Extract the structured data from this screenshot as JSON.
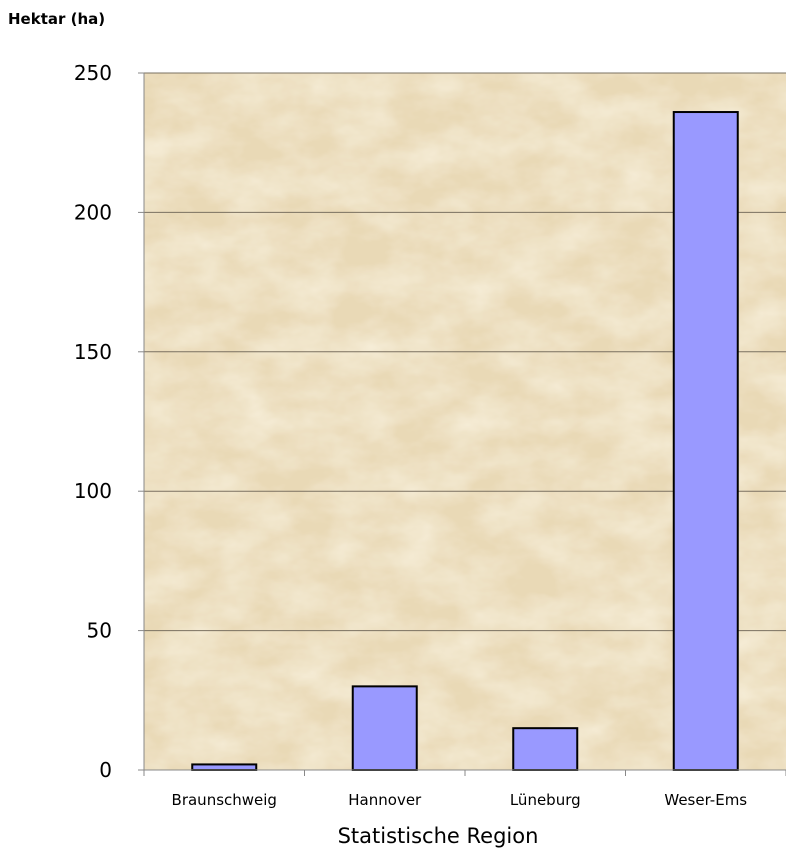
{
  "chart_data": {
    "type": "bar",
    "ylabel": "Hektar (ha)",
    "xlabel": "Statistische Region",
    "categories": [
      "Braunschweig",
      "Hannover",
      "Lüneburg",
      "Weser-Ems"
    ],
    "values": [
      2,
      30,
      15,
      236
    ],
    "ylim": [
      0,
      250
    ],
    "yticks": [
      0,
      50,
      100,
      150,
      200,
      250
    ],
    "grid": true,
    "legend": "none",
    "colors": {
      "bar": "#9999ff",
      "bar_edge": "#000000",
      "plot_bg": "#e9d9b6",
      "gridline": "#7a7060"
    }
  }
}
